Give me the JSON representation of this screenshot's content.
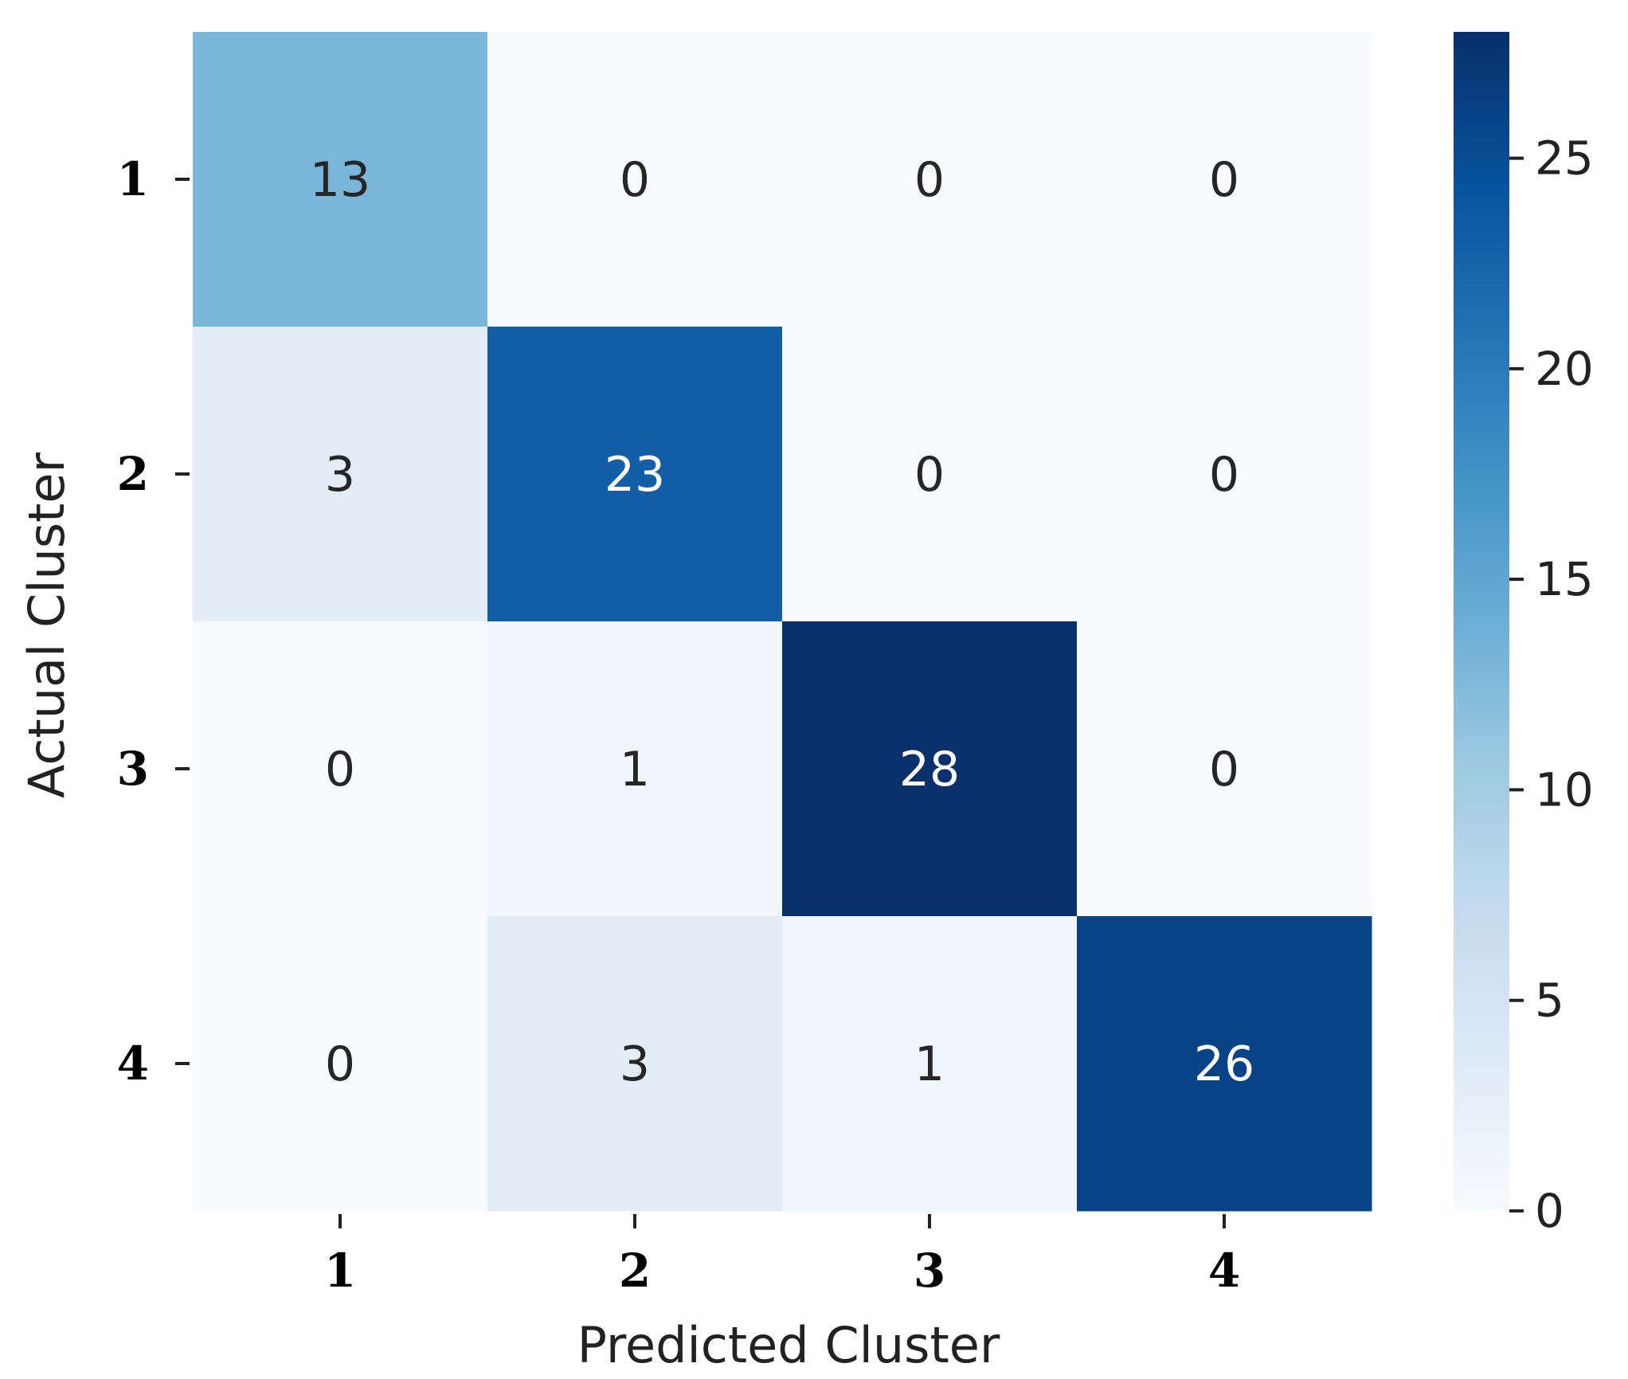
{
  "chart_data": {
    "type": "heatmap",
    "title": "",
    "xlabel": "Predicted Cluster",
    "ylabel": "Actual Cluster",
    "x_categories": [
      "1",
      "2",
      "3",
      "4"
    ],
    "y_categories": [
      "1",
      "2",
      "3",
      "4"
    ],
    "matrix": [
      [
        13,
        0,
        0,
        0
      ],
      [
        3,
        23,
        0,
        0
      ],
      [
        0,
        1,
        28,
        0
      ],
      [
        0,
        3,
        1,
        26
      ]
    ],
    "colorbar": {
      "range": [
        0,
        28
      ],
      "ticks": [
        0,
        5,
        10,
        15,
        20,
        25
      ],
      "tick_labels": [
        "0",
        "5",
        "10",
        "15",
        "20",
        "25"
      ],
      "colormap": "Blues",
      "low_color": "#f7fbff",
      "high_color": "#08306b"
    },
    "annotation_colors": {
      "light": "#ffffff",
      "dark": "#262626"
    }
  }
}
